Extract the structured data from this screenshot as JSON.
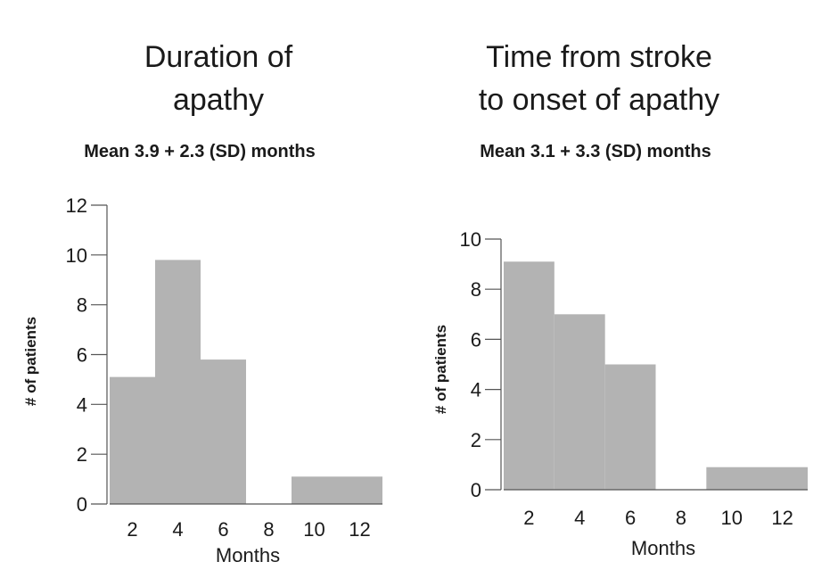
{
  "chart_data": [
    {
      "type": "bar",
      "title": [
        "Duration of",
        "apathy"
      ],
      "subtitle": "Mean 3.9 + 2.3 (SD) months",
      "xlabel": "Months",
      "ylabel": "# of patients",
      "x_ticks": [
        "2",
        "4",
        "6",
        "8",
        "10",
        "12"
      ],
      "y_ticks": [
        "0",
        "2",
        "4",
        "6",
        "8",
        "10",
        "12"
      ],
      "ylim": [
        0,
        12
      ],
      "xlim": [
        1,
        13
      ],
      "bins": [
        {
          "from": 1,
          "to": 3,
          "value": 5.1
        },
        {
          "from": 3,
          "to": 5,
          "value": 9.8
        },
        {
          "from": 5,
          "to": 7,
          "value": 5.8
        },
        {
          "from": 7,
          "to": 9,
          "value": 0
        },
        {
          "from": 9,
          "to": 13,
          "value": 1.1
        }
      ]
    },
    {
      "type": "bar",
      "title": [
        "Time from stroke",
        "to onset of apathy"
      ],
      "subtitle": "Mean 3.1 + 3.3 (SD) months",
      "xlabel": "Months",
      "ylabel": "# of patients",
      "x_ticks": [
        "2",
        "4",
        "6",
        "8",
        "10",
        "12"
      ],
      "y_ticks": [
        "0",
        "2",
        "4",
        "6",
        "8",
        "10"
      ],
      "ylim": [
        0,
        10
      ],
      "xlim": [
        1,
        13
      ],
      "bins": [
        {
          "from": 1,
          "to": 3,
          "value": 9.1
        },
        {
          "from": 3,
          "to": 5,
          "value": 7
        },
        {
          "from": 5,
          "to": 7,
          "value": 5
        },
        {
          "from": 7,
          "to": 9,
          "value": 0
        },
        {
          "from": 9,
          "to": 13,
          "value": 0.9
        }
      ]
    }
  ]
}
